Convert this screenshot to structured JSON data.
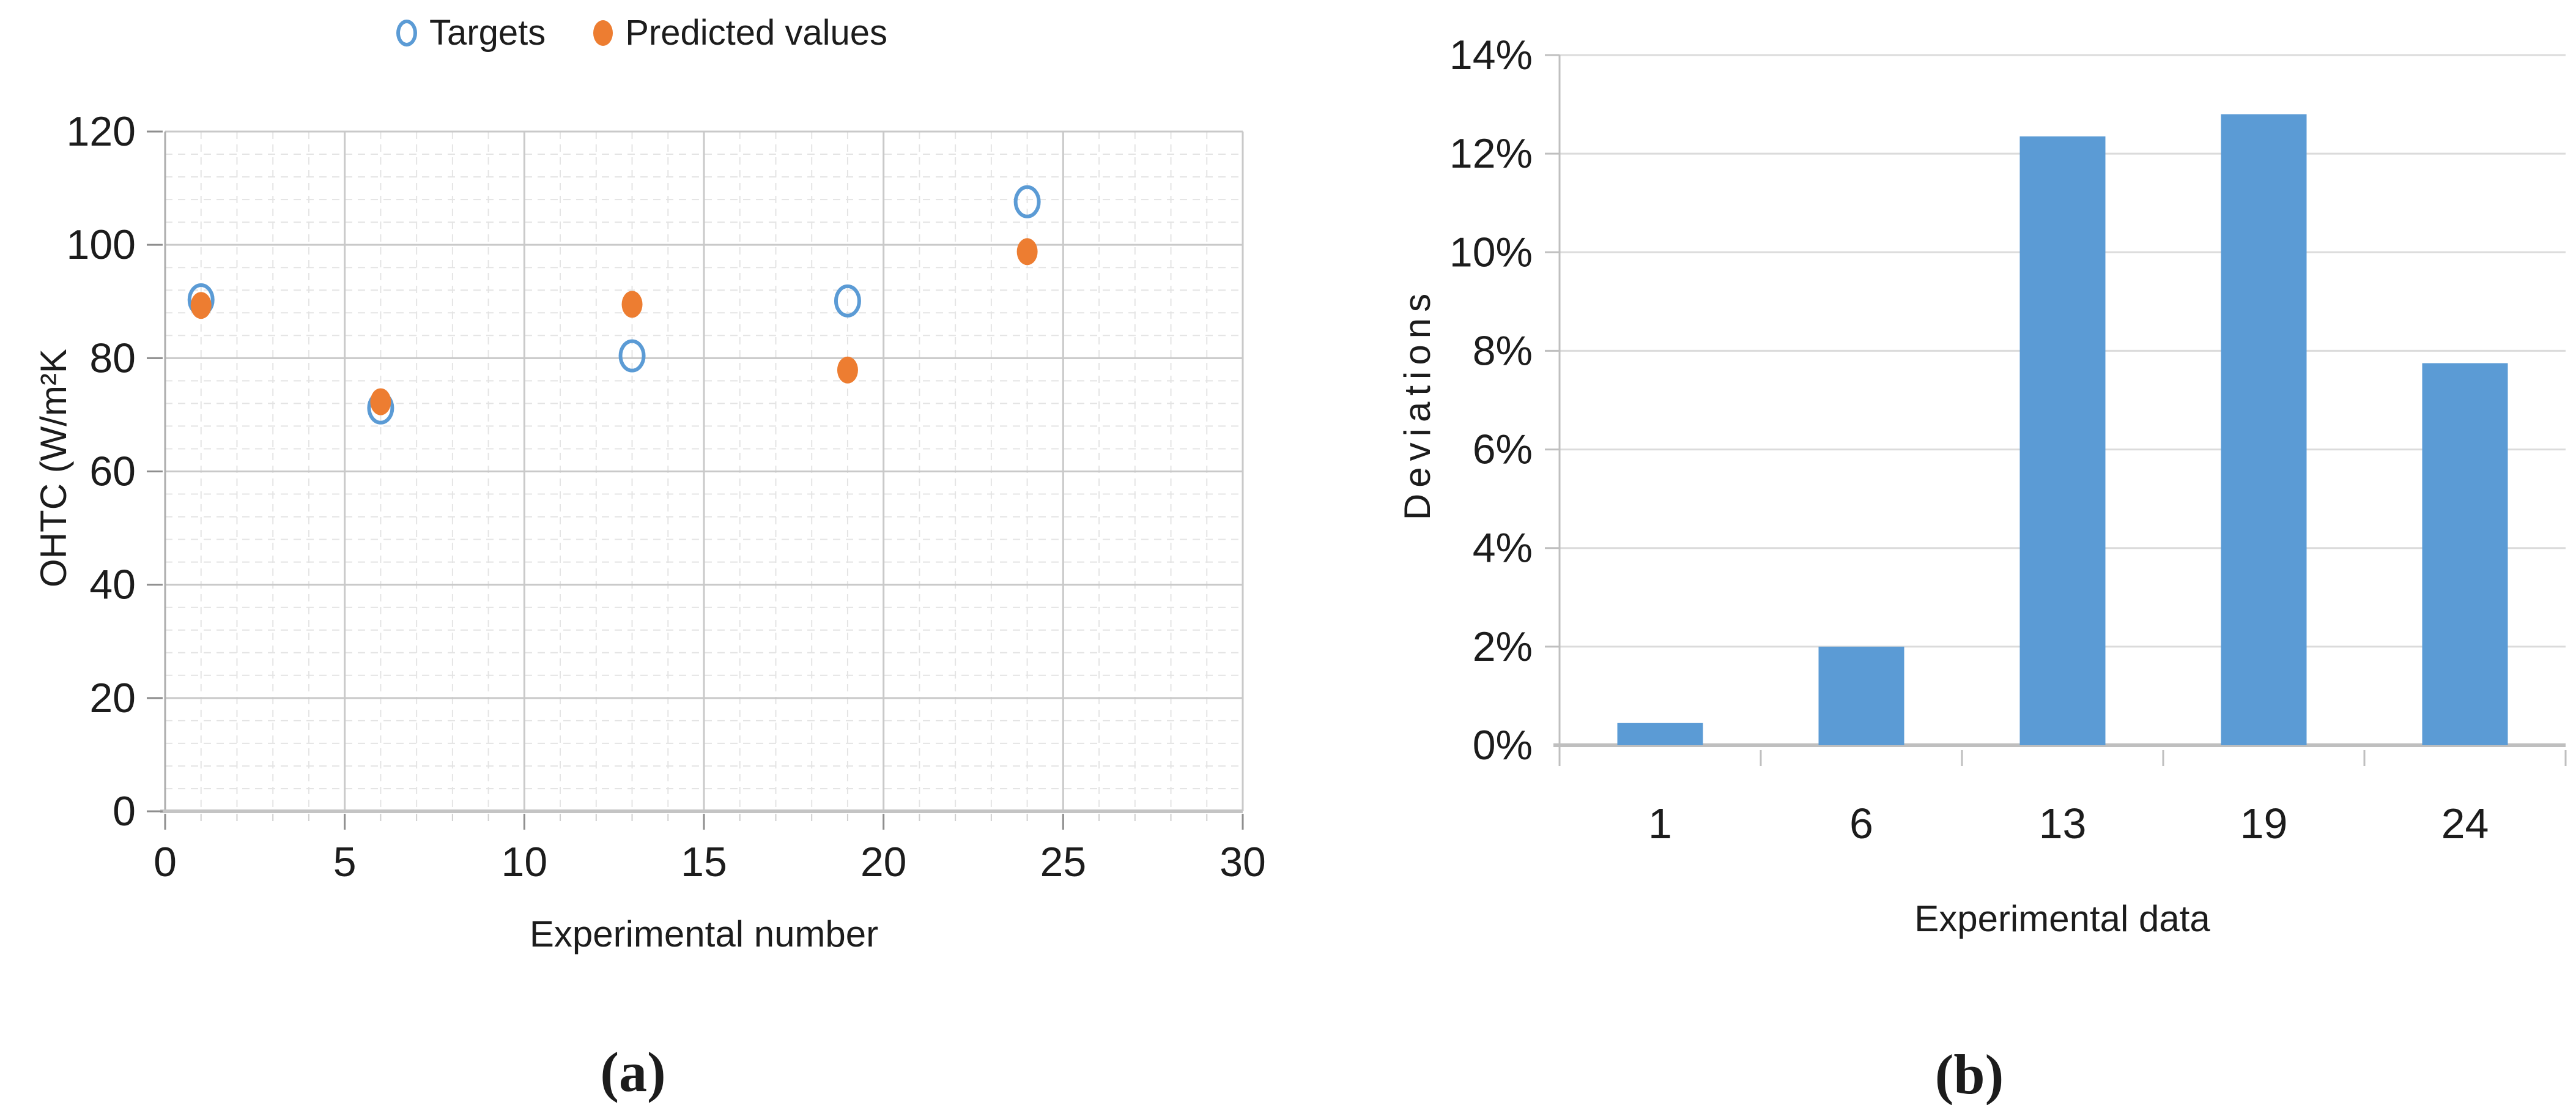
{
  "captions": {
    "a": "(a)",
    "b": "(b)"
  },
  "colors": {
    "accent_blue": "#5B9BD5",
    "accent_orange": "#ED7D31",
    "grid_major": "#C9C9C9",
    "grid_minor": "#E4E4E4",
    "axis_line": "#BFBFBF",
    "tick_dark": "#8E8E8E",
    "text": "#1C1C1C"
  },
  "chart_data": [
    {
      "type": "scatter",
      "xlabel": "Experimental number",
      "ylabel": "OHTC (W/m²K",
      "xlim": [
        0,
        30
      ],
      "ylim": [
        0,
        120
      ],
      "x_ticks": [
        0,
        5,
        10,
        15,
        20,
        25,
        30
      ],
      "y_ticks": [
        0,
        20,
        40,
        60,
        80,
        100,
        120
      ],
      "x_minor_step": 1,
      "y_minor_step": 4,
      "grid": "major-and-minor",
      "legend_position": "top-center",
      "series": [
        {
          "name": "Targets",
          "marker": "open-circle",
          "color": "#5B9BD5",
          "points": [
            [
              1,
              90.3
            ],
            [
              6,
              71.2
            ],
            [
              13,
              80.4
            ],
            [
              19,
              90.1
            ],
            [
              24,
              107.6
            ]
          ]
        },
        {
          "name": "Predicted values",
          "marker": "filled-circle",
          "color": "#ED7D31",
          "points": [
            [
              1,
              89.3
            ],
            [
              6,
              72.3
            ],
            [
              13,
              89.5
            ],
            [
              19,
              77.9
            ],
            [
              24,
              98.8
            ]
          ]
        }
      ]
    },
    {
      "type": "bar",
      "xlabel": "Experimental data",
      "ylabel": "Deviations",
      "categories": [
        "1",
        "6",
        "13",
        "19",
        "24"
      ],
      "values": [
        0.45,
        2.0,
        12.35,
        12.8,
        7.75
      ],
      "value_unit": "percent",
      "ylim": [
        0,
        14
      ],
      "y_ticks": [
        0,
        2,
        4,
        6,
        8,
        10,
        12,
        14
      ],
      "y_tick_suffix": "%",
      "grid": "horizontal-major",
      "bar_color": "#5B9BD5"
    }
  ]
}
